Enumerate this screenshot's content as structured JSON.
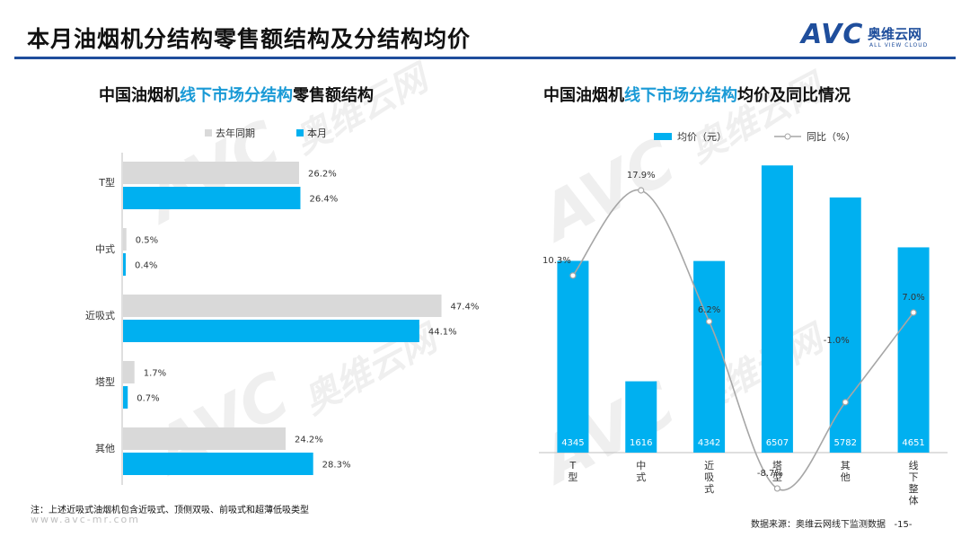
{
  "header": {
    "title": "本月油烟机分结构零售额结构及分结构均价",
    "logo_avc": "AVC",
    "logo_cn": "奥维云网",
    "logo_en": "ALL VIEW CLOUD"
  },
  "left_chart": {
    "title_pre": "中国油烟机",
    "title_hl": "线下市场分结构",
    "title_post": "零售额结构"
  },
  "right_chart": {
    "title_pre": "中国油烟机",
    "title_hl": "线下市场分结构",
    "title_post": "均价及同比情况"
  },
  "chart_data": [
    {
      "type": "bar",
      "orientation": "horizontal",
      "categories": [
        "T型",
        "中式",
        "近吸式",
        "塔型",
        "其他"
      ],
      "series": [
        {
          "name": "去年同期",
          "values": [
            26.2,
            0.5,
            47.4,
            1.7,
            24.2
          ],
          "labels": [
            "26.2%",
            "0.5%",
            "47.4%",
            "1.7%",
            "24.2%"
          ],
          "color": "#d9d9d9"
        },
        {
          "name": "本月",
          "values": [
            26.4,
            0.4,
            44.1,
            0.7,
            28.3
          ],
          "labels": [
            "26.4%",
            "0.4%",
            "44.1%",
            "0.7%",
            "28.3%"
          ],
          "color": "#00b0f0"
        }
      ],
      "xlim": [
        0,
        50
      ],
      "legend": "top"
    },
    {
      "type": "bar+line",
      "categories": [
        "T型",
        "中式",
        "近吸式",
        "塔型",
        "其他",
        "线下整体"
      ],
      "bars": {
        "name": "均价（元）",
        "values": [
          4345,
          1616,
          4342,
          6507,
          5782,
          4651
        ],
        "color": "#00b0f0"
      },
      "line": {
        "name": "同比（%）",
        "values": [
          10.3,
          17.9,
          6.2,
          -8.7,
          -1.0,
          7.0
        ],
        "labels": [
          "10.3%",
          "17.9%",
          "6.2%",
          "-8.7%",
          "-1.0%",
          "7.0%"
        ],
        "color": "#a6a6a6"
      },
      "ylim_bars": [
        0,
        7000
      ],
      "ylim_line": [
        -10,
        22
      ],
      "legend": "top"
    }
  ],
  "footer": {
    "note": "注：上述近吸式油烟机包含近吸式、顶侧双吸、前吸式和超薄低吸类型",
    "source": "数据来源：奥维云网线下监测数据",
    "page": "-15-",
    "website": "www.avc-mr.com"
  }
}
